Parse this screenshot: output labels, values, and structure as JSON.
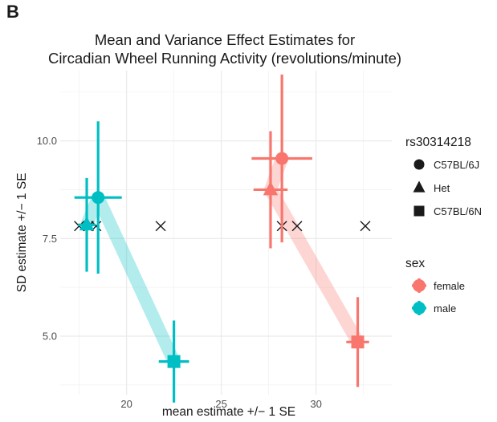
{
  "panel_label": "B",
  "chart_data": {
    "type": "scatter",
    "title_lines": [
      "Mean and Variance Effect Estimates for",
      "Circadian Wheel Running Activity (revolutions/minute)"
    ],
    "xlabel": "mean estimate +/− 1 SE",
    "ylabel": "SD estimate +/− 1 SE",
    "xlim": [
      16.5,
      34
    ],
    "ylim": [
      3.5,
      11.8
    ],
    "x_ticks": [
      20,
      25,
      30
    ],
    "y_ticks": [
      5.0,
      7.5,
      10.0
    ],
    "y_tick_labels": [
      "5.0",
      "7.5",
      "10.0"
    ],
    "grid": true,
    "legend_placement": "right",
    "colors": {
      "female": "#F8766D",
      "male": "#00BFC4",
      "neutral": "#1a1a1a"
    },
    "legends": [
      {
        "title": "rs30314218",
        "items": [
          {
            "label": "C57BL/6J",
            "shape": "circle"
          },
          {
            "label": "Het",
            "shape": "triangle"
          },
          {
            "label": "C57BL/6N",
            "shape": "square"
          }
        ]
      },
      {
        "title": "sex",
        "items": [
          {
            "label": "female",
            "color": "#F8766D"
          },
          {
            "label": "male",
            "color": "#00BFC4"
          }
        ]
      }
    ],
    "series": [
      {
        "name": "female",
        "color": "#F8766D",
        "band": [
          [
            28.2,
            9.55
          ],
          [
            27.6,
            8.75
          ],
          [
            32.2,
            4.85
          ]
        ],
        "points": [
          {
            "genotype": "C57BL/6J",
            "shape": "circle",
            "x": 28.2,
            "y": 9.55,
            "x_se": 1.6,
            "y_se": 2.15
          },
          {
            "genotype": "Het",
            "shape": "triangle",
            "x": 27.6,
            "y": 8.75,
            "x_se": 0.9,
            "y_se": 1.5
          },
          {
            "genotype": "C57BL/6N",
            "shape": "square",
            "x": 32.2,
            "y": 4.85,
            "x_se": 0.6,
            "y_se": 1.15
          }
        ]
      },
      {
        "name": "male",
        "color": "#00BFC4",
        "band": [
          [
            17.9,
            7.85
          ],
          [
            18.5,
            8.55
          ],
          [
            22.5,
            4.35
          ]
        ],
        "points": [
          {
            "genotype": "C57BL/6J",
            "shape": "circle",
            "x": 18.5,
            "y": 8.55,
            "x_se": 1.25,
            "y_se": 1.95
          },
          {
            "genotype": "Het",
            "shape": "triangle",
            "x": 17.9,
            "y": 7.85,
            "x_se": 0.45,
            "y_se": 1.2
          },
          {
            "genotype": "C57BL/6N",
            "shape": "square",
            "x": 22.5,
            "y": 4.35,
            "x_se": 0.8,
            "y_se": 1.05
          }
        ]
      }
    ],
    "reference_marks": {
      "shape": "x",
      "points": [
        [
          17.5,
          7.82
        ],
        [
          18.0,
          7.82
        ],
        [
          18.4,
          7.82
        ],
        [
          21.8,
          7.82
        ],
        [
          28.2,
          7.82
        ],
        [
          29.0,
          7.82
        ],
        [
          32.6,
          7.82
        ]
      ]
    }
  }
}
